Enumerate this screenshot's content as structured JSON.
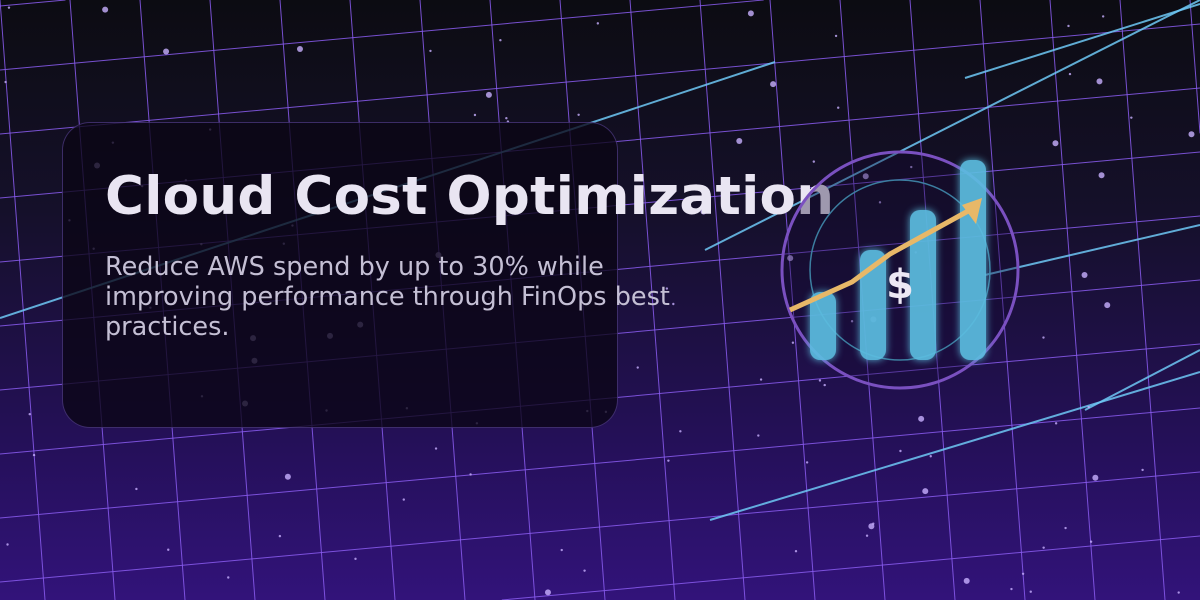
{
  "hero": {
    "title": "Cloud Cost Optimization",
    "subtitle": "Reduce AWS spend by up to 30% while improving performance through FinOps best practices."
  },
  "illustration": {
    "symbol": "$",
    "icon": "growth-bar-chart-with-trend-arrow",
    "colors": {
      "bars": "#5bbde0",
      "arrow": "#e8b868",
      "ring": "#7a50c0",
      "grid": "#8a5cf0"
    }
  }
}
